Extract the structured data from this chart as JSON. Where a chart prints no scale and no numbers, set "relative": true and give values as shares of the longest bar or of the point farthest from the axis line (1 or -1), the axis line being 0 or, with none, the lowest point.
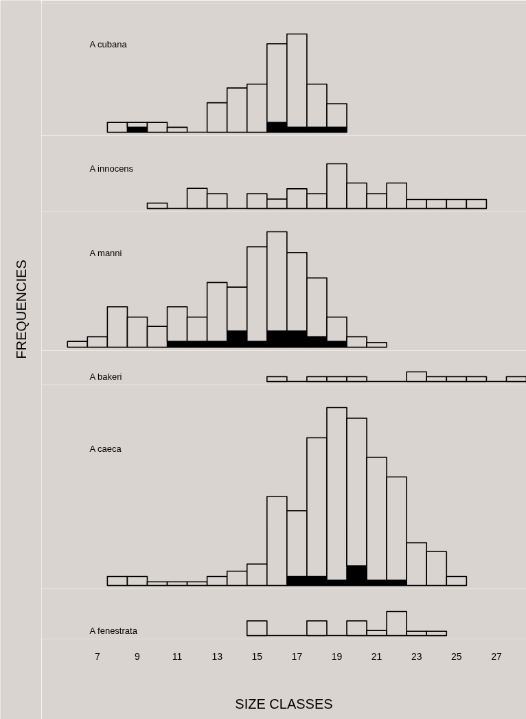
{
  "chart_data": [
    {
      "type": "bar",
      "title": "A cubana",
      "relative": true,
      "stacked": true,
      "tick_labels": false,
      "xlim": [
        4.2,
        28.5
      ],
      "x": [
        8,
        9,
        10,
        11,
        12,
        13,
        14,
        15,
        16,
        17,
        18,
        19
      ],
      "series": [
        {
          "color": "#000000",
          "values": [
            null,
            0.05,
            null,
            null,
            null,
            null,
            null,
            null,
            0.1,
            0.05,
            0.05,
            0.05
          ]
        },
        {
          "color": "#d9d4d0",
          "values": [
            0.1,
            0.05,
            0.1,
            0.05,
            0,
            0.3,
            0.45,
            0.49,
            0.8,
            0.95,
            0.44,
            0.24
          ]
        }
      ]
    },
    {
      "type": "bar",
      "title": "A innocens",
      "relative": true,
      "tick_labels": false,
      "xlim": [
        4.2,
        28.5
      ],
      "x": [
        10,
        11,
        12,
        13,
        14,
        15,
        16,
        17,
        18,
        19,
        20,
        21,
        22,
        23,
        24,
        25,
        26
      ],
      "series": [
        {
          "color": "#d9d4d0",
          "values": [
            0.12,
            0,
            0.45,
            0.33,
            0,
            0.33,
            0.21,
            0.44,
            0.33,
            1,
            0.57,
            0.33,
            0.57,
            0.2,
            0.2,
            0.2,
            0.2
          ]
        }
      ]
    },
    {
      "type": "bar",
      "title": "A manni",
      "annotations": [
        "FREQUENCIES"
      ],
      "relative": true,
      "stacked": true,
      "tick_labels": false,
      "xlim": [
        4.2,
        28.5
      ],
      "x": [
        6,
        7,
        8,
        9,
        10,
        11,
        12,
        13,
        14,
        15,
        16,
        17,
        18,
        19,
        20,
        21
      ],
      "series": [
        {
          "color": "#000000",
          "values": [
            null,
            null,
            null,
            null,
            null,
            0.05,
            0.05,
            0.05,
            0.14,
            0.05,
            0.14,
            0.14,
            0.09,
            0.05,
            null,
            null
          ]
        },
        {
          "color": "#d9d4d0",
          "values": [
            0.05,
            0.09,
            0.35,
            0.26,
            0.18,
            0.3,
            0.21,
            0.51,
            0.38,
            0.82,
            0.86,
            0.68,
            0.51,
            0.21,
            0.09,
            0.04
          ]
        }
      ]
    },
    {
      "type": "bar",
      "title": "A bakeri",
      "relative": true,
      "tick_labels": false,
      "xlim": [
        4.2,
        28.5
      ],
      "x": [
        16,
        17,
        18,
        19,
        20,
        21,
        22,
        23,
        24,
        25,
        26,
        27,
        28
      ],
      "series": [
        {
          "color": "#d9d4d0",
          "values": [
            0.5,
            0,
            0.5,
            0.5,
            0.5,
            0,
            0,
            1,
            0.5,
            0.5,
            0.5,
            0,
            0.5
          ]
        }
      ]
    },
    {
      "type": "bar",
      "title": "A caeca",
      "relative": true,
      "stacked": true,
      "tick_labels": false,
      "xlim": [
        4.2,
        28.5
      ],
      "x": [
        8,
        9,
        10,
        11,
        12,
        13,
        14,
        15,
        16,
        17,
        18,
        19,
        20,
        21,
        22,
        23,
        24,
        25
      ],
      "series": [
        {
          "color": "#000000",
          "values": [
            null,
            null,
            null,
            null,
            null,
            null,
            null,
            null,
            null,
            0.05,
            0.05,
            0.03,
            0.11,
            0.03,
            0.03,
            null,
            null,
            null
          ]
        },
        {
          "color": "#d9d4d0",
          "values": [
            0.05,
            0.05,
            0.02,
            0.02,
            0.02,
            0.05,
            0.08,
            0.12,
            0.5,
            0.37,
            0.78,
            0.97,
            0.83,
            0.69,
            0.58,
            0.24,
            0.19,
            0.05
          ]
        }
      ]
    },
    {
      "type": "bar",
      "title": "A fenestrata",
      "xlabel": "SIZE CLASSES",
      "relative": true,
      "tick_labels": "x",
      "xlim": [
        4.2,
        28.5
      ],
      "xticks": [
        7,
        9,
        11,
        13,
        15,
        17,
        19,
        21,
        23,
        25,
        27
      ],
      "x": [
        15,
        16,
        17,
        18,
        19,
        20,
        21,
        22,
        23,
        24
      ],
      "series": [
        {
          "color": "#d9d4d0",
          "values": [
            0.61,
            0,
            0,
            0.61,
            0,
            0.61,
            0.21,
            1,
            0.18,
            0.18
          ]
        }
      ]
    }
  ]
}
